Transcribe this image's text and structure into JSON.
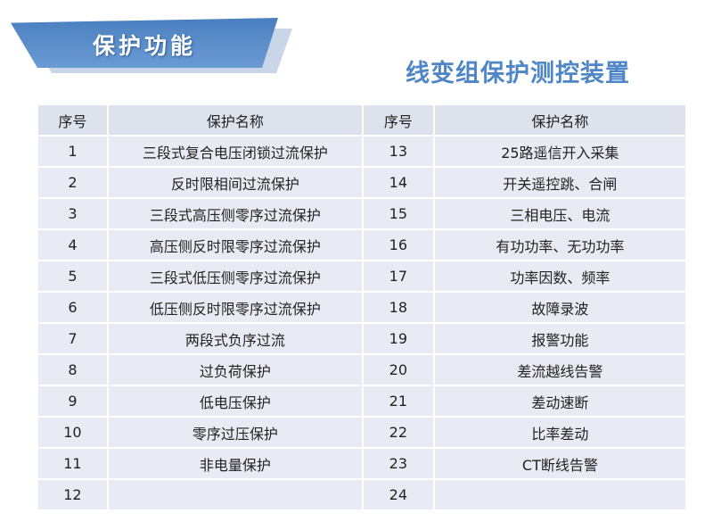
{
  "banner_title": "保护功能",
  "main_title": "线变组保护测控装置",
  "table": {
    "headers": [
      "序号",
      "保护名称",
      "序号",
      "保护名称"
    ],
    "rows": [
      [
        "1",
        "三段式复合电压闭锁过流保护",
        "13",
        "25路遥信开入采集"
      ],
      [
        "2",
        "反时限相间过流保护",
        "14",
        "开关遥控跳、合闸"
      ],
      [
        "3",
        "三段式高压侧零序过流保护",
        "15",
        "三相电压、电流"
      ],
      [
        "4",
        "高压侧反时限零序过流保护",
        "16",
        "有功功率、无功功率"
      ],
      [
        "5",
        "三段式低压侧零序过流保护",
        "17",
        "功率因数、频率"
      ],
      [
        "6",
        "低压侧反时限零序过流保护",
        "18",
        "故障录波"
      ],
      [
        "7",
        "两段式负序过流",
        "19",
        "报警功能"
      ],
      [
        "8",
        "过负荷保护",
        "20",
        "差流越线告警"
      ],
      [
        "9",
        "低电压保护",
        "21",
        "差动速断"
      ],
      [
        "10",
        "零序过压保护",
        "22",
        "比率差动"
      ],
      [
        "11",
        "非电量保护",
        "23",
        "CT断线告警"
      ],
      [
        "12",
        "",
        "24",
        ""
      ]
    ]
  },
  "colors": {
    "banner": "#5b8fcc",
    "title": "#4f86c6",
    "row": "#e8ebf3",
    "header": "#dde2ec"
  }
}
